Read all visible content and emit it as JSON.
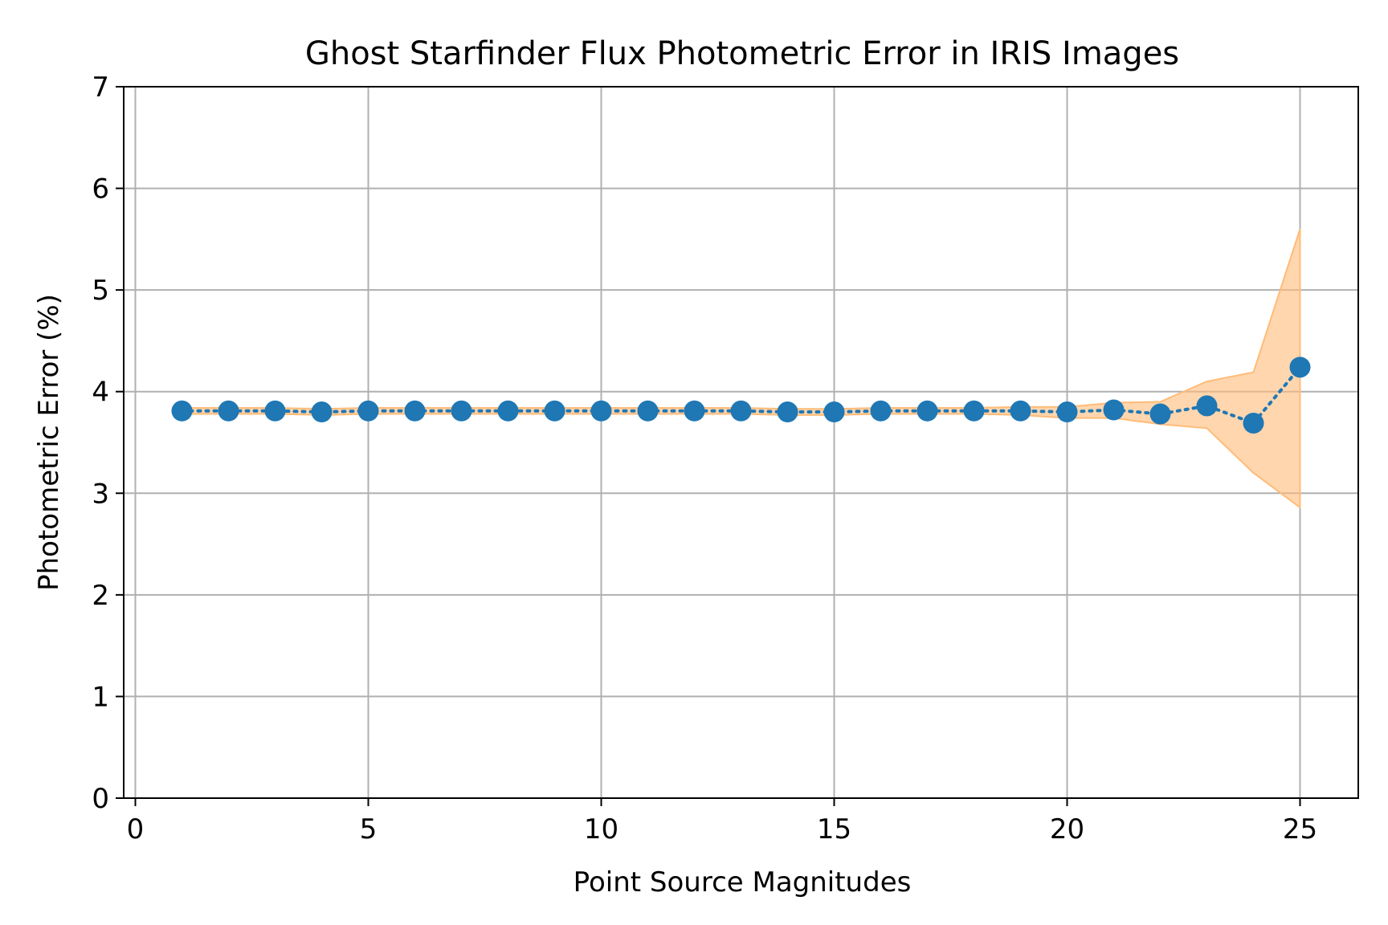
{
  "chart_data": {
    "type": "line",
    "title": "Ghost Starfinder Flux Photometric Error in IRIS Images",
    "xlabel": "Point Source Magnitudes",
    "ylabel": "Photometric Error (%)",
    "xlim": [
      -0.25,
      26.25
    ],
    "ylim": [
      0,
      7
    ],
    "xticks": [
      0,
      5,
      10,
      15,
      20,
      25
    ],
    "yticks": [
      0,
      1,
      2,
      3,
      4,
      5,
      6,
      7
    ],
    "grid": true,
    "series": [
      {
        "style": "dotted line with circle markers",
        "color": "#1f77b4",
        "x": [
          1,
          2,
          3,
          4,
          5,
          6,
          7,
          8,
          9,
          10,
          11,
          12,
          13,
          14,
          15,
          16,
          17,
          18,
          19,
          20,
          21,
          22,
          23,
          24,
          25
        ],
        "values": [
          3.81,
          3.81,
          3.81,
          3.8,
          3.81,
          3.81,
          3.81,
          3.81,
          3.81,
          3.81,
          3.81,
          3.81,
          3.81,
          3.8,
          3.8,
          3.81,
          3.81,
          3.81,
          3.81,
          3.8,
          3.82,
          3.78,
          3.86,
          3.69,
          4.24
        ]
      }
    ],
    "band": {
      "color": "#ffbb78",
      "x": [
        1,
        2,
        3,
        4,
        5,
        6,
        7,
        8,
        9,
        10,
        11,
        12,
        13,
        14,
        15,
        16,
        17,
        18,
        19,
        20,
        21,
        22,
        23,
        24,
        25
      ],
      "lower": [
        3.78,
        3.78,
        3.78,
        3.77,
        3.78,
        3.78,
        3.78,
        3.78,
        3.78,
        3.78,
        3.78,
        3.78,
        3.78,
        3.77,
        3.77,
        3.78,
        3.78,
        3.78,
        3.77,
        3.74,
        3.74,
        3.68,
        3.64,
        3.2,
        2.86
      ],
      "upper": [
        3.84,
        3.84,
        3.84,
        3.83,
        3.84,
        3.84,
        3.84,
        3.84,
        3.84,
        3.84,
        3.84,
        3.84,
        3.84,
        3.83,
        3.83,
        3.84,
        3.84,
        3.84,
        3.85,
        3.85,
        3.89,
        3.9,
        4.1,
        4.19,
        5.6
      ]
    }
  }
}
